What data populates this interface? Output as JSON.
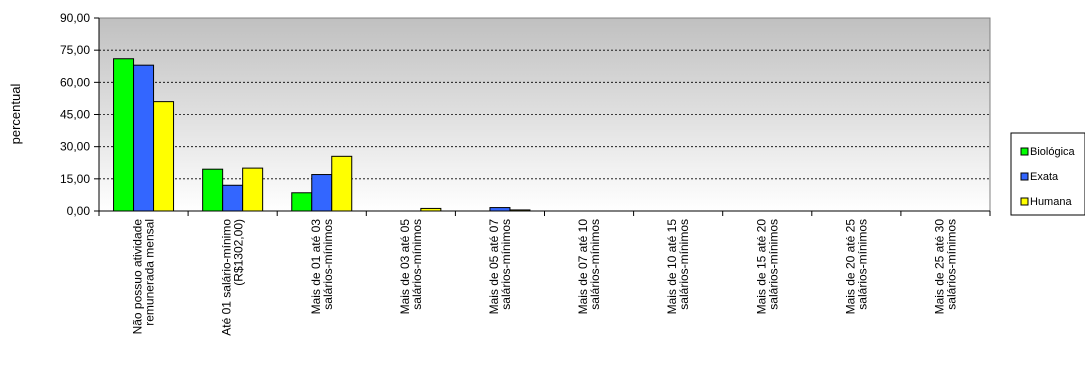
{
  "chart_data": {
    "type": "bar",
    "ylabel": "percentual",
    "ylim": [
      0,
      90
    ],
    "yticks": [
      "0,00",
      "15,00",
      "30,00",
      "45,00",
      "60,00",
      "75,00",
      "90,00"
    ],
    "grid": true,
    "legend_position": "right",
    "categories": [
      [
        "Não possuo atividade",
        "remunerada mensal"
      ],
      [
        "Até 01 salário-mínimo",
        "(R$1302,00)"
      ],
      [
        "Mais de 01 até 03",
        "salários-mínimos"
      ],
      [
        "Mais de 03 até 05",
        "salários-mínimos"
      ],
      [
        "Mais de 05 até 07",
        "salários-mínimos"
      ],
      [
        "Mais de 07 até 10",
        "salários-mínimos"
      ],
      [
        "Mais de 10 até 15",
        "salários-mínimos"
      ],
      [
        "Mais de 15 até 20",
        "salários-mínimos"
      ],
      [
        "Mais de 20 até 25",
        "salários-mínimos"
      ],
      [
        "Mais de 25 até 30",
        "salários-mínimos"
      ]
    ],
    "series": [
      {
        "name": "Biológica",
        "color": "#00ff00",
        "values": [
          71.0,
          19.5,
          8.5,
          0,
          0,
          0,
          0,
          0,
          0,
          0
        ]
      },
      {
        "name": "Exata",
        "color": "#3366ff",
        "values": [
          68.0,
          12.0,
          17.0,
          0,
          1.6,
          0,
          0,
          0,
          0,
          0
        ]
      },
      {
        "name": "Humana",
        "color": "#ffff00",
        "values": [
          51.0,
          20.0,
          25.5,
          1.2,
          0.5,
          0,
          0,
          0,
          0,
          0
        ]
      }
    ]
  }
}
